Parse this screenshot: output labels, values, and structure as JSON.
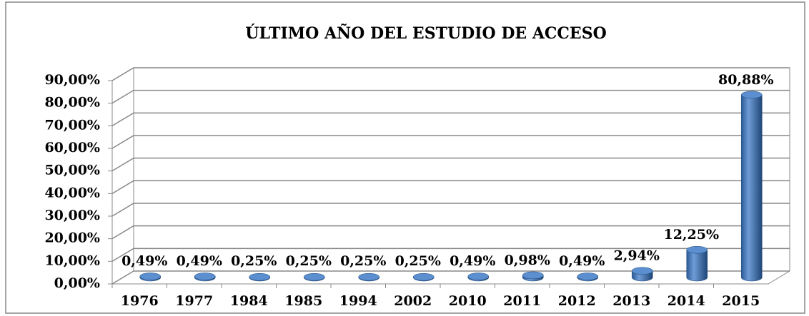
{
  "chart_data": {
    "type": "bar3d",
    "title": "ÚLTIMO AÑO DEL ESTUDIO DE ACCESO",
    "categories": [
      "1976",
      "1977",
      "1984",
      "1985",
      "1994",
      "2002",
      "2010",
      "2011",
      "2012",
      "2013",
      "2014",
      "2015"
    ],
    "values": [
      0.49,
      0.49,
      0.25,
      0.25,
      0.25,
      0.25,
      0.49,
      0.98,
      0.49,
      2.94,
      12.25,
      80.88
    ],
    "value_labels": [
      "0,49%",
      "0,49%",
      "0,25%",
      "0,25%",
      "0,25%",
      "0,25%",
      "0,49%",
      "0,98%",
      "0,49%",
      "2,94%",
      "12,25%",
      "80,88%"
    ],
    "color": "#4f81bd",
    "ylim": [
      0,
      90
    ],
    "yticks": [
      {
        "value": 0,
        "label": "0,00%"
      },
      {
        "value": 10,
        "label": "10,00%"
      },
      {
        "value": 20,
        "label": "20,00%"
      },
      {
        "value": 30,
        "label": "30,00%"
      },
      {
        "value": 40,
        "label": "40,00%"
      },
      {
        "value": 50,
        "label": "50,00%"
      },
      {
        "value": 60,
        "label": "60,00%"
      },
      {
        "value": 70,
        "label": "70,00%"
      },
      {
        "value": 80,
        "label": "80,00%"
      },
      {
        "value": 90,
        "label": "90,00%"
      }
    ],
    "grid": true
  }
}
